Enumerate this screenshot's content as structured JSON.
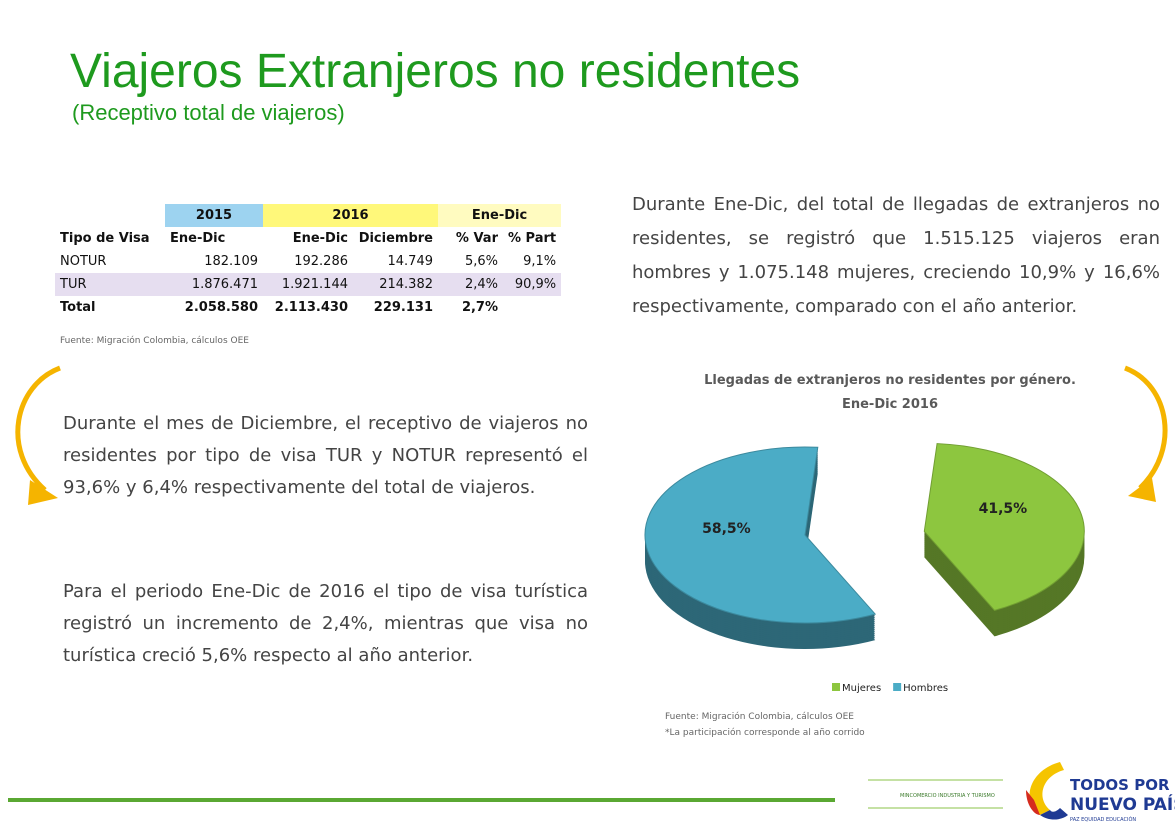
{
  "title": "Viajeros Extranjeros no residentes",
  "subtitle": "(Receptivo total de viajeros)",
  "table": {
    "group_headers": [
      "2015",
      "2016",
      "Ene-Dic"
    ],
    "headers": [
      "Tipo de Visa",
      "Ene-Dic",
      "Ene-Dic",
      "Diciembre",
      "% Var",
      "% Part"
    ],
    "rows": [
      [
        "NOTUR",
        "182.109",
        "192.286",
        "14.749",
        "5,6%",
        "9,1%"
      ],
      [
        "TUR",
        "1.876.471",
        "1.921.144",
        "214.382",
        "2,4%",
        "90,9%"
      ],
      [
        "Total",
        "2.058.580",
        "2.113.430",
        "229.131",
        "2,7%"
      ]
    ]
  },
  "table_source": "Fuente: Migración Colombia, cálculos OEE",
  "right_paragraph": "Durante Ene-Dic, del total de llegadas de extranjeros no residentes, se registró que 1.515.125 viajeros eran hombres y 1.075.148 mujeres, creciendo 10,9% y 16,6% respectivamente, comparado con el año anterior.",
  "left_paragraphs": [
    "Durante el mes de Diciembre, el receptivo de viajeros no residentes por tipo de visa TUR y NOTUR representó el 93,6% y 6,4% respectivamente del total de viajeros.",
    "Para el periodo Ene-Dic de 2016 el tipo de visa turística registró un incremento de 2,4%, mientras que visa no turística creció 5,6% respecto al año anterior."
  ],
  "chart_data": {
    "type": "pie",
    "title": "Llegadas de extranjeros no residentes por género.",
    "subtitle": "Ene-Dic 2016",
    "categories": [
      "Mujeres",
      "Hombres"
    ],
    "values": [
      41.5,
      58.5
    ],
    "value_labels": [
      "41,5%",
      "58,5%"
    ],
    "colors": [
      "#8dc63f",
      "#4bacc6"
    ]
  },
  "chart_notes": [
    "Fuente: Migración Colombia, cálculos OEE",
    "*La participación corresponde al año corrido"
  ],
  "footer": {
    "ministry": "MINCOMERCIO INDUSTRIA Y TURISMO",
    "brand_line1": "TODOS POR UN",
    "brand_line2": "NUEVO PAÍS",
    "tagline": "PAZ EQUIDAD EDUCACIÓN"
  }
}
